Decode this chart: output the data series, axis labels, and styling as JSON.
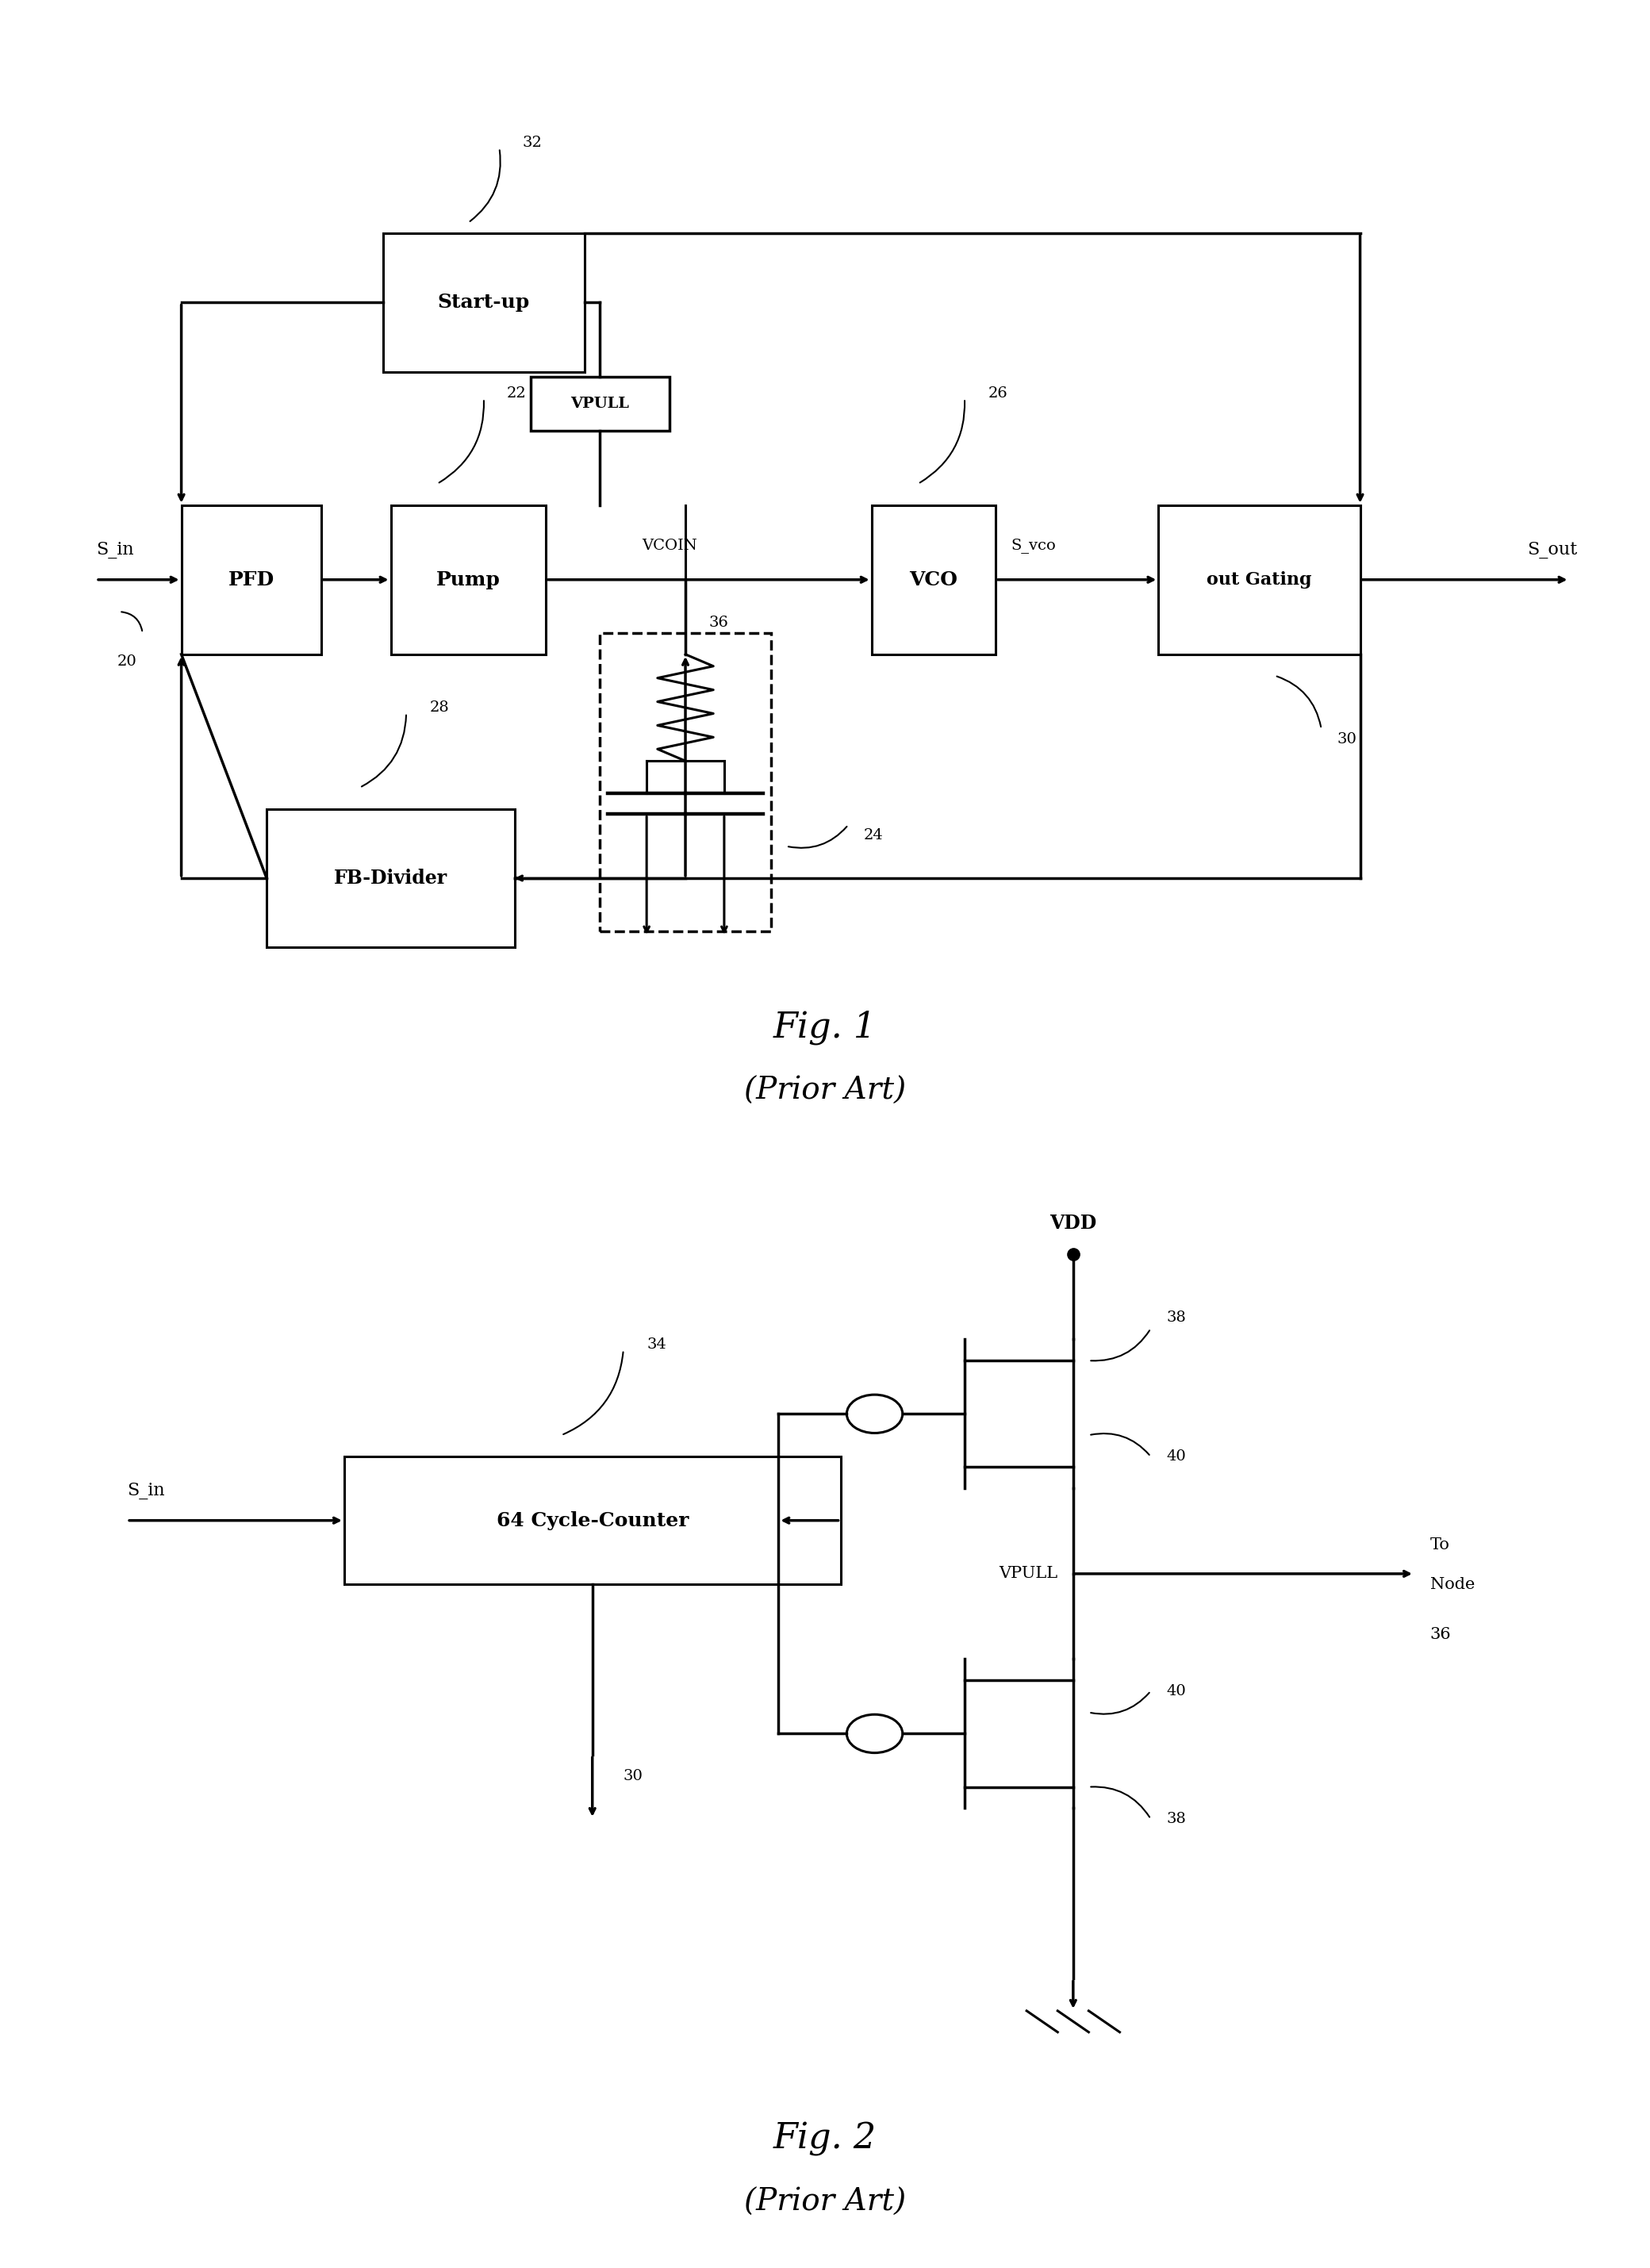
{
  "fig_width": 20.8,
  "fig_height": 28.59,
  "bg_color": "#ffffff",
  "fig1_title": "Fig. 1",
  "fig1_subtitle": "(Prior Art)",
  "fig2_title": "Fig. 2",
  "fig2_subtitle": "(Prior Art)",
  "font_size_label": 16,
  "font_size_ref": 14,
  "font_size_caption": 32,
  "font_size_caption2": 28
}
